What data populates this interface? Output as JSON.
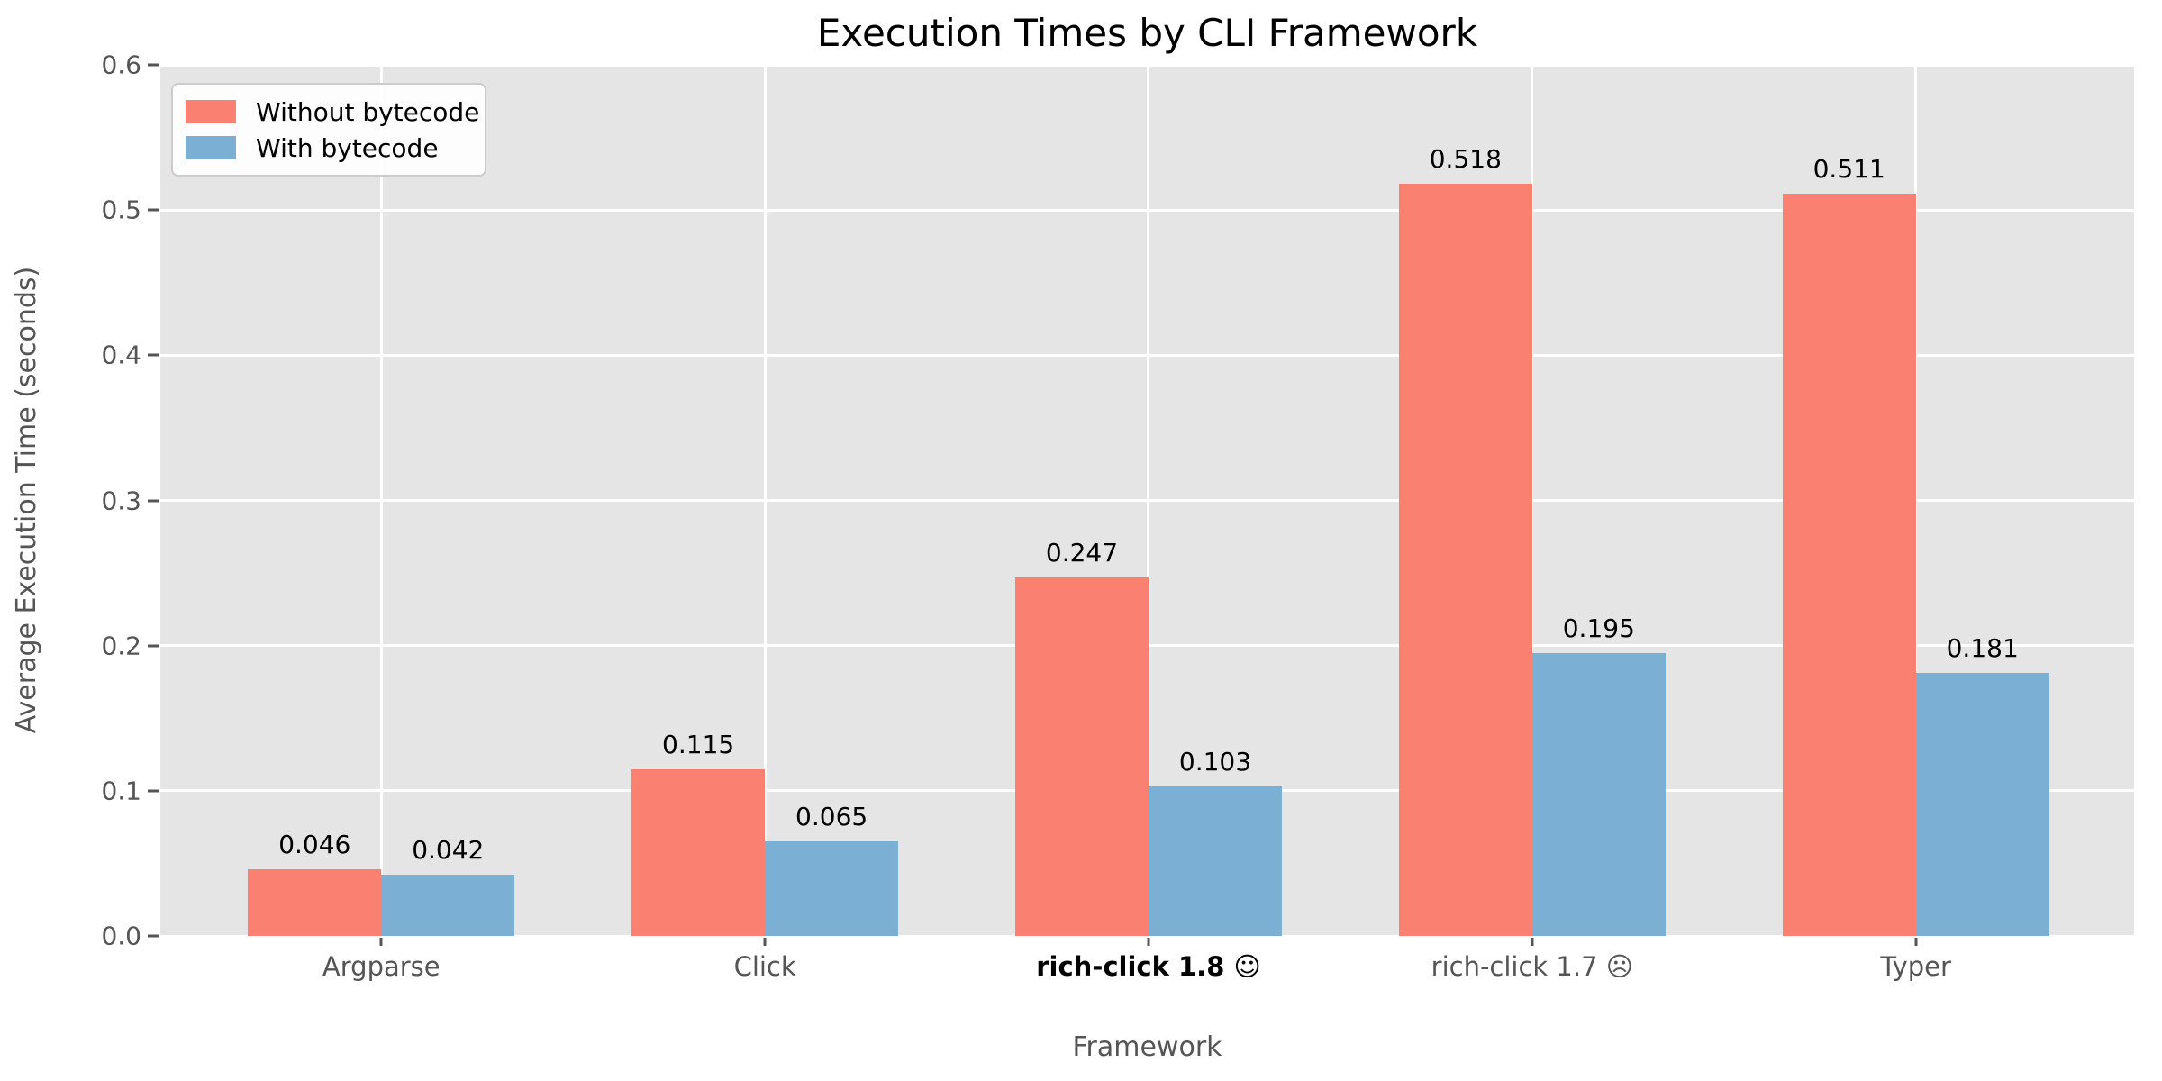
{
  "chart_data": {
    "type": "bar",
    "title": "Execution Times by CLI Framework",
    "xlabel": "Framework",
    "ylabel": "Average Execution Time (seconds)",
    "ylim": [
      0,
      0.6
    ],
    "yticks": [
      0.0,
      0.1,
      0.2,
      0.3,
      0.4,
      0.5,
      0.6
    ],
    "ytick_labels": [
      "0.0",
      "0.1",
      "0.2",
      "0.3",
      "0.4",
      "0.5",
      "0.6"
    ],
    "grid": "white horizontal and vertical gridlines on light gray plot background, grid below bars",
    "legend_position": "upper left",
    "categories": [
      {
        "label": "Argparse",
        "bold": false
      },
      {
        "label": "Click",
        "bold": false
      },
      {
        "label": "rich-click 1.8 ☺",
        "bold": true
      },
      {
        "label": "rich-click 1.7 ☹",
        "bold": false
      },
      {
        "label": "Typer",
        "bold": false
      }
    ],
    "series": [
      {
        "name": "Without bytecode",
        "color": "#FA8072",
        "values": [
          0.046,
          0.115,
          0.247,
          0.518,
          0.511
        ],
        "value_labels": [
          "0.046",
          "0.115",
          "0.247",
          "0.518",
          "0.511"
        ]
      },
      {
        "name": "With bytecode",
        "color": "#7BAFD4",
        "values": [
          0.042,
          0.065,
          0.103,
          0.195,
          0.181
        ],
        "value_labels": [
          "0.042",
          "0.065",
          "0.103",
          "0.195",
          "0.181"
        ]
      }
    ]
  },
  "colors": {
    "plot_background": "#e5e5e5",
    "figure_background": "#ffffff",
    "gridline": "#ffffff",
    "tick_text": "#555555",
    "value_label_text": "#000000",
    "series_without_bytecode": "#FA8072",
    "series_with_bytecode": "#7BAFD4"
  }
}
